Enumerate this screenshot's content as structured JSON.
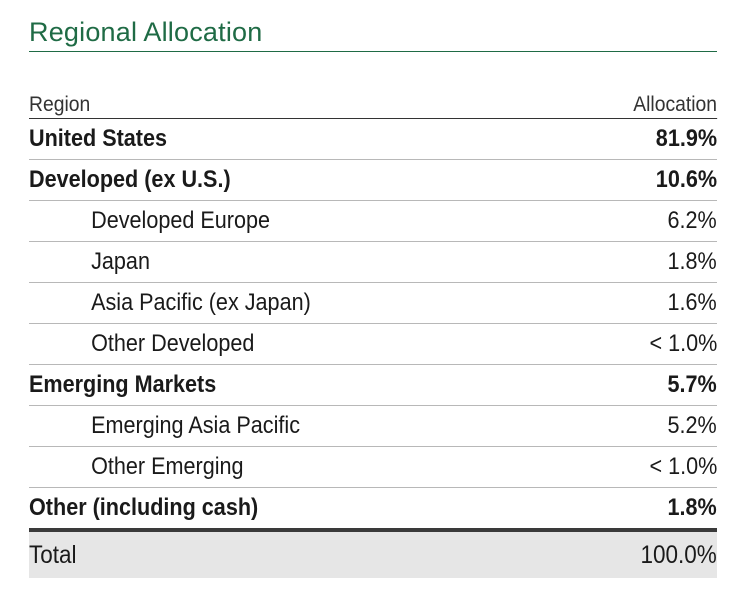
{
  "title": "Regional Allocation",
  "header": {
    "region": "Region",
    "allocation": "Allocation"
  },
  "rows": [
    {
      "region": "United States",
      "allocation": "81.9%",
      "level": "top"
    },
    {
      "region": "Developed (ex U.S.)",
      "allocation": "10.6%",
      "level": "top"
    },
    {
      "region": "Developed Europe",
      "allocation": "6.2%",
      "level": "sub"
    },
    {
      "region": "Japan",
      "allocation": "1.8%",
      "level": "sub"
    },
    {
      "region": "Asia Pacific (ex Japan)",
      "allocation": "1.6%",
      "level": "sub"
    },
    {
      "region": "Other Developed",
      "allocation": "< 1.0%",
      "level": "sub"
    },
    {
      "region": "Emerging Markets",
      "allocation": "5.7%",
      "level": "top"
    },
    {
      "region": "Emerging Asia Pacific",
      "allocation": "5.2%",
      "level": "sub"
    },
    {
      "region": "Other Emerging",
      "allocation": "< 1.0%",
      "level": "sub"
    },
    {
      "region": "Other (including cash)",
      "allocation": "1.8%",
      "level": "top"
    }
  ],
  "total": {
    "label": "Total",
    "value": "100.0%"
  },
  "colors": {
    "title": "#1f6b45",
    "total_background": "#e6e6e6"
  }
}
